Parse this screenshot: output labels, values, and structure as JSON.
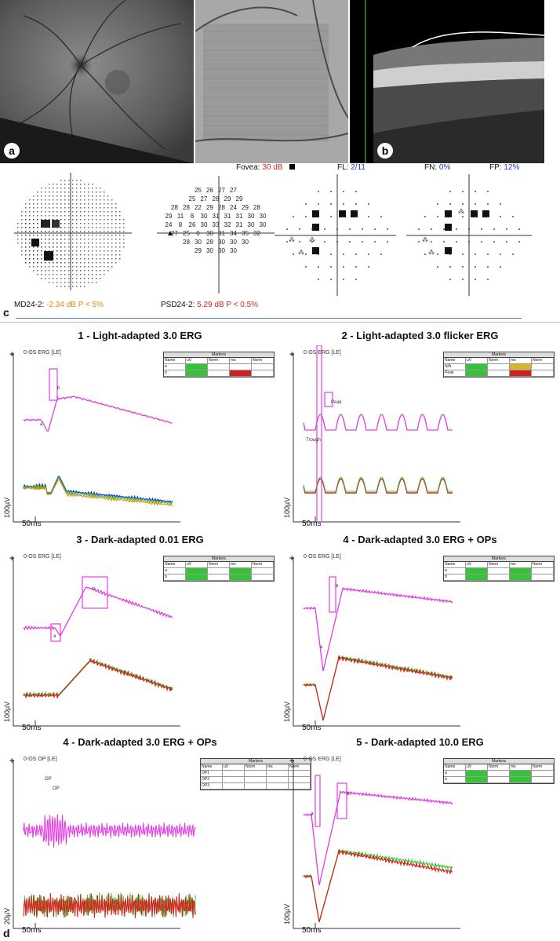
{
  "panel_letters": {
    "a": "a",
    "b": "b",
    "c": "c",
    "d": "d"
  },
  "oct_header": "",
  "vf_stats": {
    "fovea_label": "Fovea:",
    "fovea_value": "30 dB",
    "fl_label": "FL:",
    "fl_value": "2/11",
    "fn_label": "FN:",
    "fn_value": "0%",
    "fp_label": "FP:",
    "fp_value": "12%"
  },
  "threshold_grid": [
    [
      "25",
      "26",
      "27",
      "27"
    ],
    [
      "25",
      "27",
      "28",
      "29",
      "29"
    ],
    [
      "28",
      "28",
      "22",
      "29",
      "28",
      "24",
      "29",
      "28"
    ],
    [
      "29",
      "11",
      "8",
      "30",
      "31",
      "31",
      "31",
      "30",
      "30"
    ],
    [
      "24",
      "8",
      "26",
      "30",
      "33",
      "32",
      "31",
      "30",
      "30"
    ],
    [
      "27",
      "25",
      "0",
      "30",
      "31",
      "34",
      "35",
      "32"
    ],
    [
      "28",
      "30",
      "28",
      "30",
      "30",
      "30"
    ],
    [
      "29",
      "30",
      "30",
      "30"
    ]
  ],
  "md_line": {
    "label": "MD24-2:",
    "value": "-2.34 dB P < 5%"
  },
  "psd_line": {
    "label": "PSD24-2:",
    "value": "5.29 dB P < 0.5%"
  },
  "colors": {
    "pink": "#e23ee2",
    "red": "#d81e1e",
    "green": "#3cc83c",
    "blue": "#1a3fc4",
    "orange": "#e08a00",
    "vf_red": "#e02020",
    "vf_blue": "#1a3fd0"
  },
  "erg_panels": [
    {
      "title": "1 - Light-adapted 3.0 ERG",
      "header": "0-OS ERG [LE]",
      "ms": "50ms",
      "uv": "100µV",
      "markers": {
        "a": "a",
        "b": "b"
      },
      "table": {
        "title": "Markers",
        "cols": [
          "Name",
          "uV",
          "Norm",
          "ms",
          "Norm"
        ],
        "rows": [
          [
            "a",
            "",
            "",
            "",
            ""
          ],
          [
            "b",
            "",
            "",
            "",
            ""
          ]
        ]
      }
    },
    {
      "title": "2 - Light-adapted 3.0 flicker ERG",
      "header": "0-OS ERG [LE]",
      "ms": "50ms",
      "uv": "100µV",
      "markers": {
        "peak": "Peak",
        "trough": "Trough"
      },
      "table": {
        "title": "Markers",
        "cols": [
          "Name",
          "uV",
          "Norm",
          "ms",
          "Norm"
        ],
        "rows": [
          [
            "N/A",
            "",
            "",
            "",
            ""
          ],
          [
            "Peak",
            "",
            "",
            "",
            ""
          ]
        ]
      }
    },
    {
      "title": "3 - Dark-adapted 0.01 ERG",
      "header": "0-OS ERG [LE]",
      "ms": "50ms",
      "uv": "100µV",
      "markers": {
        "a": "a",
        "b": "b"
      },
      "table": {
        "title": "Markers",
        "cols": [
          "Name",
          "uV",
          "Norm",
          "ms",
          "Norm"
        ],
        "rows": [
          [
            "a",
            "",
            "",
            "",
            ""
          ],
          [
            "b",
            "",
            "",
            "",
            ""
          ]
        ]
      }
    },
    {
      "title": "4 - Dark-adapted 3.0 ERG + OPs",
      "header": "0-OS ERG [LE]",
      "ms": "50ms",
      "uv": "100µV",
      "markers": {
        "a": "a",
        "b": "b"
      },
      "table": {
        "title": "Markers",
        "cols": [
          "Name",
          "uV",
          "Norm",
          "ms",
          "Norm"
        ],
        "rows": [
          [
            "a",
            "",
            "",
            "",
            ""
          ],
          [
            "b",
            "",
            "",
            "",
            ""
          ]
        ]
      }
    },
    {
      "title": "4 - Dark-adapted 3.0 ERG + OPs",
      "header": "0-OS OP [LE]",
      "ms": "50ms",
      "uv": "20µV",
      "markers": {
        "op1": "OP",
        "op2": "OP"
      },
      "table": {
        "title": "Markers",
        "cols": [
          "Name",
          "uV",
          "Norm",
          "ms",
          "Norm"
        ],
        "rows": [
          [
            "OP1",
            "",
            "",
            "",
            ""
          ],
          [
            "OP2",
            "",
            "",
            "",
            ""
          ],
          [
            "OP3",
            "",
            "",
            "",
            ""
          ]
        ]
      }
    },
    {
      "title": "5 - Dark-adapted 10.0 ERG",
      "header": "0-OS ERG [LE]",
      "ms": "50ms",
      "uv": "100µV",
      "markers": {
        "a": "a",
        "b": "b"
      },
      "table": {
        "title": "Markers",
        "cols": [
          "Name",
          "uV",
          "Norm",
          "ms",
          "Norm"
        ],
        "rows": [
          [
            "a",
            "",
            "",
            "",
            ""
          ],
          [
            "b",
            "",
            "",
            "",
            ""
          ]
        ]
      }
    }
  ]
}
